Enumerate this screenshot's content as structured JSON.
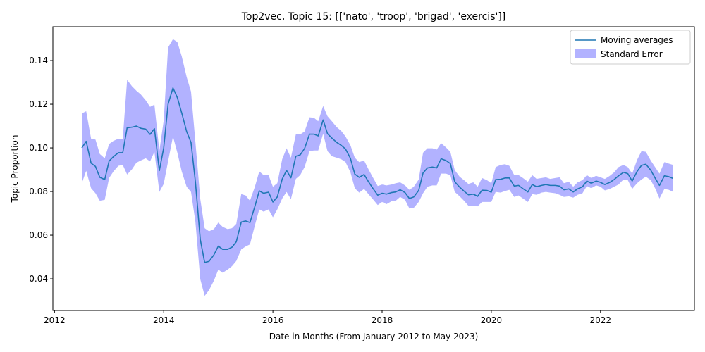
{
  "chart_data": {
    "type": "line",
    "title": "Top2vec, Topic 15: [['nato', 'troop', 'brigad', 'exercis']]",
    "xlabel": "Date in Months (From January 2012 to May 2023)",
    "ylabel": "Topic Proportion",
    "xlim": [
      2011.97,
      2023.72
    ],
    "ylim": [
      0.0255,
      0.1555
    ],
    "xticks": [
      2012,
      2014,
      2016,
      2018,
      2020,
      2022
    ],
    "xtick_labels": [
      "2012",
      "2014",
      "2016",
      "2018",
      "2020",
      "2022"
    ],
    "yticks": [
      0.04,
      0.06,
      0.08,
      0.1,
      0.12,
      0.14
    ],
    "ytick_labels": [
      "0.04",
      "0.06",
      "0.08",
      "0.10",
      "0.12",
      "0.14"
    ],
    "grid": false,
    "legend_position": "top-right",
    "x": [
      2012.5,
      2012.58,
      2012.67,
      2012.75,
      2012.83,
      2012.92,
      2013.0,
      2013.08,
      2013.17,
      2013.25,
      2013.33,
      2013.42,
      2013.5,
      2013.58,
      2013.67,
      2013.75,
      2013.83,
      2013.92,
      2014.0,
      2014.08,
      2014.17,
      2014.25,
      2014.33,
      2014.42,
      2014.5,
      2014.58,
      2014.67,
      2014.75,
      2014.83,
      2014.92,
      2015.0,
      2015.08,
      2015.17,
      2015.25,
      2015.33,
      2015.42,
      2015.5,
      2015.58,
      2015.67,
      2015.75,
      2015.83,
      2015.92,
      2016.0,
      2016.08,
      2016.17,
      2016.25,
      2016.33,
      2016.42,
      2016.5,
      2016.58,
      2016.67,
      2016.75,
      2016.83,
      2016.92,
      2017.0,
      2017.08,
      2017.17,
      2017.25,
      2017.33,
      2017.42,
      2017.5,
      2017.58,
      2017.67,
      2017.75,
      2017.83,
      2017.92,
      2018.0,
      2018.08,
      2018.17,
      2018.25,
      2018.33,
      2018.42,
      2018.5,
      2018.58,
      2018.67,
      2018.75,
      2018.83,
      2018.92,
      2019.0,
      2019.08,
      2019.17,
      2019.25,
      2019.33,
      2019.42,
      2019.5,
      2019.58,
      2019.67,
      2019.75,
      2019.83,
      2019.92,
      2020.0,
      2020.08,
      2020.17,
      2020.25,
      2020.33,
      2020.42,
      2020.5,
      2020.58,
      2020.67,
      2020.75,
      2020.83,
      2020.92,
      2021.0,
      2021.08,
      2021.17,
      2021.25,
      2021.33,
      2021.42,
      2021.5,
      2021.58,
      2021.67,
      2021.75,
      2021.83,
      2021.92,
      2022.0,
      2022.08,
      2022.17,
      2022.25,
      2022.33,
      2022.42,
      2022.5,
      2022.58,
      2022.67,
      2022.75,
      2022.83,
      2022.92,
      2023.0,
      2023.08,
      2023.17,
      2023.25,
      2023.33
    ],
    "series": [
      {
        "name": "Moving averages",
        "color": "#1f77b4",
        "values": [
          0.1,
          0.103,
          0.093,
          0.0915,
          0.0865,
          0.0855,
          0.094,
          0.096,
          0.0978,
          0.0978,
          0.1092,
          0.1095,
          0.11,
          0.109,
          0.1086,
          0.1062,
          0.1088,
          0.0896,
          0.1,
          0.12,
          0.1275,
          0.123,
          0.116,
          0.1075,
          0.1025,
          0.0845,
          0.058,
          0.0475,
          0.048,
          0.051,
          0.055,
          0.0535,
          0.0535,
          0.0545,
          0.057,
          0.066,
          0.0665,
          0.0658,
          0.0732,
          0.0803,
          0.0792,
          0.0797,
          0.0752,
          0.0775,
          0.0857,
          0.0897,
          0.0863,
          0.0962,
          0.0968,
          0.0997,
          0.1063,
          0.1063,
          0.1055,
          0.1128,
          0.1065,
          0.1045,
          0.1025,
          0.1012,
          0.0995,
          0.0952,
          0.088,
          0.0865,
          0.0878,
          0.0845,
          0.0815,
          0.0783,
          0.0792,
          0.0788,
          0.0795,
          0.0798,
          0.0808,
          0.0795,
          0.0768,
          0.0775,
          0.0805,
          0.0885,
          0.0908,
          0.0912,
          0.0908,
          0.095,
          0.0942,
          0.0928,
          0.0845,
          0.082,
          0.0802,
          0.0785,
          0.0788,
          0.0778,
          0.0806,
          0.0805,
          0.0797,
          0.0855,
          0.0856,
          0.0862,
          0.0862,
          0.0825,
          0.0828,
          0.0813,
          0.0798,
          0.0832,
          0.0822,
          0.0828,
          0.0832,
          0.0828,
          0.0828,
          0.0825,
          0.0808,
          0.0812,
          0.0798,
          0.0812,
          0.0822,
          0.0848,
          0.0838,
          0.0848,
          0.0842,
          0.0832,
          0.0842,
          0.0855,
          0.0872,
          0.0888,
          0.0882,
          0.0848,
          0.0892,
          0.092,
          0.0925,
          0.0898,
          0.0862,
          0.0828,
          0.0872,
          0.0868,
          0.086
        ]
      }
    ],
    "band": {
      "name": "Standard Error",
      "color": "#0000ff",
      "opacity": 0.3,
      "upper": [
        0.1158,
        0.1168,
        0.1042,
        0.1038,
        0.0972,
        0.0952,
        0.1018,
        0.1032,
        0.1042,
        0.1042,
        0.1312,
        0.1282,
        0.1262,
        0.1245,
        0.1218,
        0.1188,
        0.1198,
        0.0986,
        0.1125,
        0.146,
        0.1498,
        0.1485,
        0.142,
        0.1325,
        0.1258,
        0.1028,
        0.0765,
        0.0632,
        0.0618,
        0.0628,
        0.0658,
        0.0638,
        0.0628,
        0.0632,
        0.0652,
        0.0788,
        0.0782,
        0.0758,
        0.0822,
        0.0892,
        0.0875,
        0.0875,
        0.0822,
        0.0838,
        0.0948,
        0.0998,
        0.0955,
        0.1062,
        0.1062,
        0.1075,
        0.114,
        0.1138,
        0.1122,
        0.1192,
        0.1145,
        0.1122,
        0.1095,
        0.1078,
        0.1052,
        0.1012,
        0.0955,
        0.0935,
        0.0942,
        0.0902,
        0.0865,
        0.0825,
        0.0832,
        0.0828,
        0.0832,
        0.0838,
        0.0842,
        0.0828,
        0.0808,
        0.0822,
        0.0855,
        0.0978,
        0.0998,
        0.0998,
        0.0992,
        0.1022,
        0.1002,
        0.0982,
        0.0898,
        0.0868,
        0.0852,
        0.0835,
        0.0842,
        0.0822,
        0.0862,
        0.0852,
        0.0838,
        0.0912,
        0.0922,
        0.0925,
        0.0918,
        0.0875,
        0.0875,
        0.0862,
        0.0845,
        0.0875,
        0.0858,
        0.0862,
        0.0865,
        0.0858,
        0.0862,
        0.0865,
        0.0838,
        0.0845,
        0.0822,
        0.0842,
        0.0852,
        0.0875,
        0.0862,
        0.0872,
        0.0865,
        0.0858,
        0.0872,
        0.0888,
        0.0912,
        0.0922,
        0.0912,
        0.0882,
        0.0945,
        0.0985,
        0.0982,
        0.0942,
        0.0912,
        0.0882,
        0.0935,
        0.0928,
        0.0922
      ],
      "lower": [
        0.0838,
        0.0895,
        0.0815,
        0.0792,
        0.0758,
        0.0762,
        0.0862,
        0.0892,
        0.0918,
        0.0922,
        0.0878,
        0.0902,
        0.0932,
        0.0942,
        0.0952,
        0.0938,
        0.0982,
        0.0798,
        0.0835,
        0.0938,
        0.1052,
        0.0978,
        0.0892,
        0.0822,
        0.0798,
        0.0662,
        0.0398,
        0.0322,
        0.0348,
        0.0392,
        0.0442,
        0.0428,
        0.0442,
        0.0458,
        0.0482,
        0.0535,
        0.0548,
        0.0558,
        0.0645,
        0.0718,
        0.0708,
        0.0718,
        0.0682,
        0.0718,
        0.0768,
        0.0798,
        0.0765,
        0.0858,
        0.0875,
        0.0912,
        0.0985,
        0.0988,
        0.0988,
        0.1065,
        0.0985,
        0.0962,
        0.0955,
        0.0948,
        0.0935,
        0.0888,
        0.0815,
        0.0795,
        0.0812,
        0.0788,
        0.0765,
        0.0738,
        0.0752,
        0.0742,
        0.0755,
        0.0758,
        0.0775,
        0.0762,
        0.0722,
        0.0725,
        0.0752,
        0.0792,
        0.0822,
        0.0828,
        0.0828,
        0.0882,
        0.0882,
        0.0875,
        0.0798,
        0.0778,
        0.0758,
        0.0735,
        0.0735,
        0.0732,
        0.0752,
        0.0752,
        0.0752,
        0.0798,
        0.0795,
        0.0802,
        0.0808,
        0.0775,
        0.0782,
        0.0768,
        0.0752,
        0.0788,
        0.0785,
        0.0795,
        0.0798,
        0.0795,
        0.0792,
        0.0785,
        0.0775,
        0.0778,
        0.0772,
        0.0785,
        0.0792,
        0.0825,
        0.0815,
        0.0828,
        0.0822,
        0.0805,
        0.0812,
        0.0822,
        0.0832,
        0.0855,
        0.0852,
        0.0812,
        0.0838,
        0.0855,
        0.0868,
        0.0852,
        0.0815,
        0.0768,
        0.0812,
        0.0808,
        0.0798
      ]
    }
  }
}
